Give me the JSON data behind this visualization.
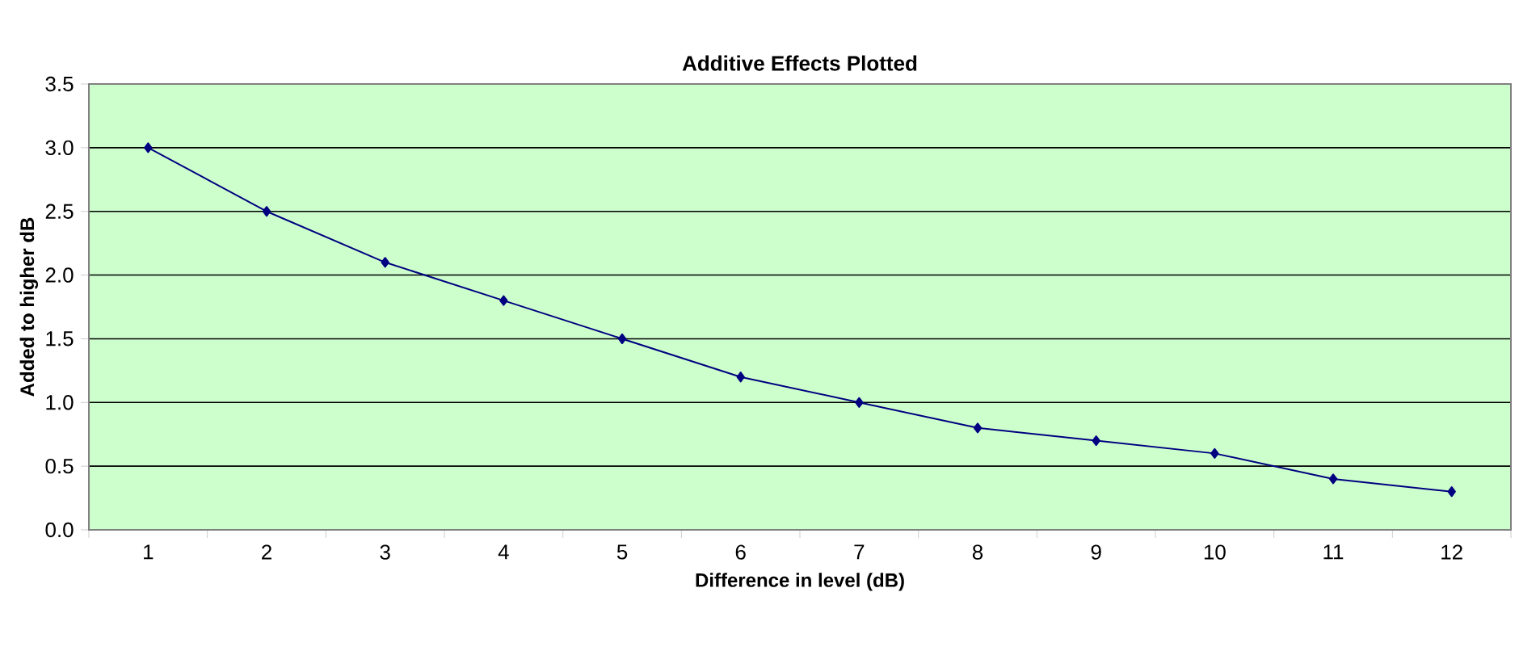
{
  "chart_data": {
    "type": "line",
    "title": "Additive Effects Plotted",
    "xlabel": "Difference in level (dB)",
    "ylabel": "Added to higher dB",
    "categories": [
      "1",
      "2",
      "3",
      "4",
      "5",
      "6",
      "7",
      "8",
      "9",
      "10",
      "11",
      "12"
    ],
    "series": [
      {
        "color": "#000080",
        "values": [
          3.0,
          2.5,
          2.1,
          1.8,
          1.5,
          1.2,
          1.0,
          0.8,
          0.7,
          0.6,
          0.4,
          0.3
        ]
      }
    ],
    "ylim": [
      0,
      3.5
    ],
    "yticks": [
      {
        "value": 0,
        "label": "0.0"
      },
      0.5,
      {
        "value": 1,
        "label": "1.0"
      },
      1.5,
      {
        "value": 2,
        "label": "2.0"
      },
      2.5,
      {
        "value": 3,
        "label": "3.0"
      },
      3.5
    ],
    "grid": "y",
    "marker": "diamond",
    "line_style": "solid"
  }
}
